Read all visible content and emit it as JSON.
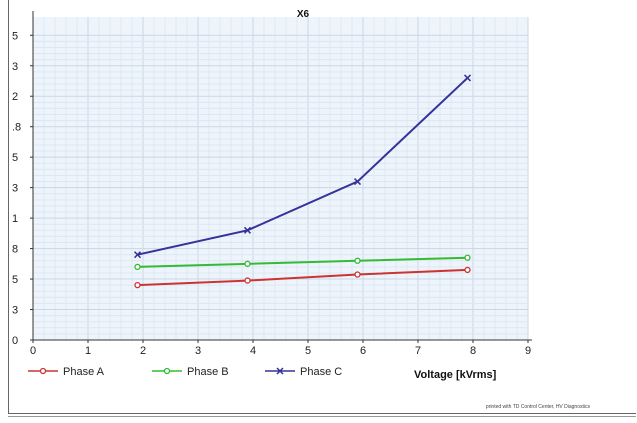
{
  "chart_data": {
    "type": "line",
    "title": "X6",
    "xlabel": "Voltage [kVrms]",
    "ylabel": "",
    "xlim": [
      0,
      9
    ],
    "ylim": [
      0,
      15
    ],
    "x_ticks": [
      "0",
      "1",
      "2",
      "3",
      "4",
      "5",
      "6",
      "7",
      "8",
      "9"
    ],
    "y_ticks": [
      {
        "value": 0,
        "label": "0"
      },
      {
        "value": 1,
        "label": "3"
      },
      {
        "value": 2,
        "label": "5"
      },
      {
        "value": 3,
        "label": "8"
      },
      {
        "value": 4,
        "label": "1"
      },
      {
        "value": 5,
        "label": "3"
      },
      {
        "value": 6,
        "label": "5"
      },
      {
        "value": 7,
        "label": ".8"
      },
      {
        "value": 8,
        "label": "2"
      },
      {
        "value": 9,
        "label": "3"
      },
      {
        "value": 10,
        "label": "5"
      }
    ],
    "grid": true,
    "legend_position": "bottom",
    "x": [
      1.9,
      3.9,
      5.9,
      7.9
    ],
    "series": [
      {
        "name": "Phase A",
        "color": "#cc3333",
        "marker": "circle",
        "values": [
          1.8,
          1.95,
          2.15,
          2.3
        ]
      },
      {
        "name": "Phase B",
        "color": "#33bb33",
        "marker": "circle",
        "values": [
          2.4,
          2.5,
          2.6,
          2.7
        ]
      },
      {
        "name": "Phase C",
        "color": "#333399",
        "marker": "cross",
        "values": [
          2.8,
          3.6,
          5.2,
          8.6
        ]
      }
    ],
    "footer": "printed with TD Control Center, HV Diagnostics"
  }
}
